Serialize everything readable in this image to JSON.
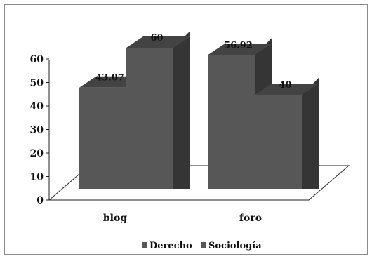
{
  "chart_data": {
    "type": "bar",
    "categories": [
      "blog",
      "foro"
    ],
    "series": [
      {
        "name": "Derecho",
        "values": [
          43.07,
          56.92
        ]
      },
      {
        "name": "Sociología",
        "values": [
          60,
          40
        ]
      }
    ],
    "data_labels": [
      [
        "43.07",
        "56.92"
      ],
      [
        "60",
        "40"
      ]
    ],
    "y_ticks": [
      "0",
      "10",
      "20",
      "30",
      "40",
      "50",
      "60"
    ],
    "ylim": [
      0,
      60
    ],
    "title": "",
    "xlabel": "",
    "ylabel": "",
    "legend_position": "bottom",
    "grid": false,
    "three_d": true,
    "colors": {
      "bar_front": "#575757",
      "bar_side": "#353535",
      "bar_top": "#434343",
      "axis": "#222222",
      "floor_line": "#222222"
    }
  }
}
